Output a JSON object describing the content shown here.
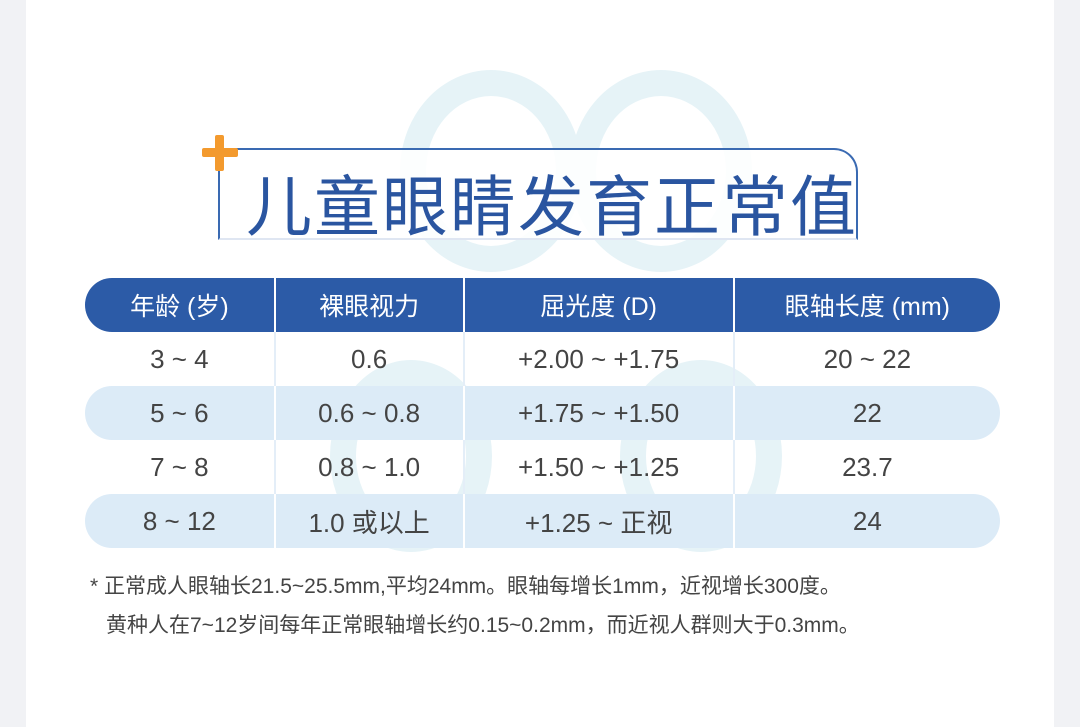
{
  "header": {
    "title": "儿童眼睛发育正常值"
  },
  "table": {
    "columns": [
      "年龄 (岁)",
      "裸眼视力",
      "屈光度 (D)",
      "眼轴长度 (mm)"
    ],
    "rows": [
      [
        "3 ~ 4",
        "0.6",
        "+2.00 ~ +1.75",
        "20 ~ 22"
      ],
      [
        "5 ~ 6",
        "0.6 ~ 0.8",
        "+1.75 ~ +1.50",
        "22"
      ],
      [
        "7 ~ 8",
        "0.8 ~ 1.0",
        "+1.50 ~ +1.25",
        "23.7"
      ],
      [
        "8 ~ 12",
        "1.0 或以上",
        "+1.25 ~ 正视",
        "24"
      ]
    ]
  },
  "footnote": [
    "* 正常成人眼轴长21.5~25.5mm,平均24mm。眼轴每增长1mm，近视增长300度。",
    "黄种人在7~12岁间每年正常眼轴增长约0.15~0.2mm，而近视人群则大于0.3mm。"
  ]
}
